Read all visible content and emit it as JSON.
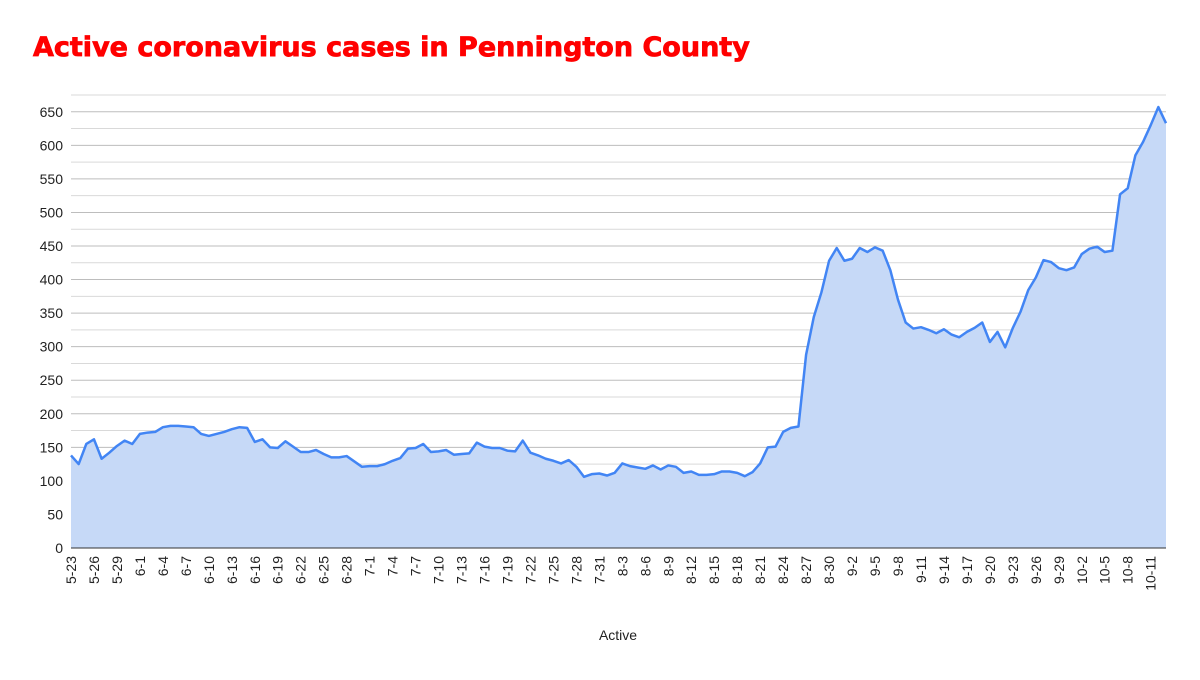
{
  "chart_data": {
    "type": "area",
    "title": "Active coronavirus cases in Pennington County",
    "xlabel": "Active",
    "categories": [
      "5-23",
      null,
      null,
      "5-26",
      null,
      null,
      "5-29",
      null,
      null,
      "6-1",
      null,
      null,
      "6-4",
      null,
      null,
      "6-7",
      null,
      null,
      "6-10",
      null,
      null,
      "6-13",
      null,
      null,
      "6-16",
      null,
      null,
      "6-19",
      null,
      null,
      "6-22",
      null,
      null,
      "6-25",
      null,
      null,
      "6-28",
      null,
      null,
      "7-1",
      null,
      null,
      "7-4",
      null,
      null,
      "7-7",
      null,
      null,
      "7-10",
      null,
      null,
      "7-13",
      null,
      null,
      "7-16",
      null,
      null,
      "7-19",
      null,
      null,
      "7-22",
      null,
      null,
      "7-25",
      null,
      null,
      "7-28",
      null,
      null,
      "7-31",
      null,
      null,
      "8-3",
      null,
      null,
      "8-6",
      null,
      null,
      "8-9",
      null,
      null,
      "8-12",
      null,
      null,
      "8-15",
      null,
      null,
      "8-18",
      null,
      null,
      "8-21",
      null,
      null,
      "8-24",
      null,
      null,
      "8-27",
      null,
      null,
      "8-30",
      null,
      null,
      "9-2",
      null,
      null,
      "9-5",
      null,
      null,
      "9-8",
      null,
      null,
      "9-11",
      null,
      null,
      "9-14",
      null,
      null,
      "9-17",
      null,
      null,
      "9-20",
      null,
      null,
      "9-23",
      null,
      null,
      "9-26",
      null,
      null,
      "9-29",
      null,
      null,
      "10-2",
      null,
      null,
      "10-5",
      null,
      null,
      "10-8",
      null,
      null,
      "10-11",
      null,
      null
    ],
    "series": [
      {
        "color": "#4285f4",
        "fill": "#c6d9f7",
        "values": [
          138,
          125,
          155,
          162,
          133,
          142,
          152,
          160,
          155,
          170,
          172,
          173,
          180,
          182,
          182,
          181,
          180,
          170,
          167,
          170,
          173,
          177,
          180,
          179,
          158,
          162,
          150,
          149,
          159,
          151,
          143,
          143,
          146,
          140,
          135,
          135,
          137,
          129,
          121,
          122,
          122,
          125,
          130,
          134,
          148,
          149,
          155,
          143,
          144,
          146,
          139,
          140,
          141,
          157,
          151,
          149,
          149,
          145,
          144,
          160,
          142,
          138,
          133,
          130,
          126,
          131,
          121,
          106,
          110,
          111,
          108,
          112,
          126,
          122,
          120,
          118,
          123,
          117,
          123,
          121,
          112,
          114,
          109,
          109,
          110,
          114,
          114,
          112,
          107,
          113,
          126,
          150,
          151,
          173,
          179,
          181,
          288,
          344,
          381,
          428,
          447,
          428,
          431,
          447,
          441,
          448,
          443,
          414,
          370,
          336,
          327,
          329,
          325,
          320,
          326,
          318,
          314,
          322,
          328,
          336,
          307,
          322,
          299,
          328,
          352,
          384,
          403,
          429,
          426,
          417,
          414,
          418,
          438,
          446,
          449,
          441,
          443,
          527,
          536,
          585,
          605,
          630,
          657,
          633
        ]
      }
    ],
    "ylim": [
      0,
      675
    ],
    "yticks": [
      0,
      50,
      100,
      150,
      200,
      250,
      300,
      350,
      400,
      450,
      500,
      550,
      600,
      650
    ],
    "minor_yticks": [
      25,
      75,
      125,
      175,
      225,
      275,
      325,
      375,
      425,
      475,
      525,
      575,
      625,
      675
    ],
    "grid": true
  }
}
